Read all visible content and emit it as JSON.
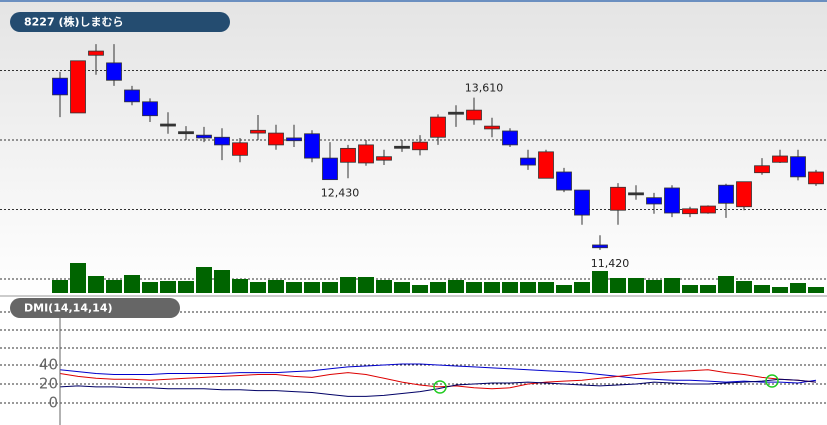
{
  "chart_data": [
    {
      "type": "candlestick",
      "title": "8227 (株)しまむら",
      "open": [
        13890,
        13390,
        14220,
        14110,
        13720,
        13550,
        13230,
        13120,
        13070,
        13040,
        12780,
        13100,
        12930,
        13030,
        13090,
        12740,
        12680,
        12670,
        12710,
        12910,
        12860,
        13040,
        13400,
        13290,
        13160,
        13130,
        12740,
        12450,
        12540,
        12280,
        11490,
        11990,
        12240,
        12170,
        12310,
        11940,
        11950,
        12350,
        12040,
        12530,
        12680,
        12760,
        12370
      ],
      "high": [
        13980,
        14140,
        14380,
        14380,
        13780,
        13600,
        13400,
        13200,
        13190,
        13170,
        13030,
        13360,
        13220,
        13220,
        13140,
        12970,
        12930,
        13000,
        12860,
        13000,
        13070,
        13370,
        13500,
        13610,
        13320,
        13170,
        12860,
        12860,
        12600,
        12280,
        11630,
        12380,
        12350,
        12240,
        12350,
        12040,
        12060,
        12370,
        12400,
        12740,
        12860,
        12860,
        12570
      ],
      "low": [
        13330,
        13390,
        13940,
        13780,
        13500,
        13260,
        13090,
        13000,
        12970,
        12710,
        12680,
        13000,
        12860,
        12900,
        12680,
        12430,
        12450,
        12630,
        12640,
        12830,
        12780,
        12930,
        13190,
        13220,
        13040,
        12900,
        12570,
        12450,
        12250,
        11780,
        11420,
        11780,
        12140,
        11940,
        11890,
        11890,
        11940,
        11880,
        11990,
        12500,
        12670,
        12420,
        12340
      ],
      "close": [
        13650,
        14140,
        14280,
        13860,
        13550,
        13350,
        13230,
        13120,
        13030,
        12930,
        12960,
        13140,
        13100,
        12990,
        12740,
        12430,
        12880,
        12930,
        12760,
        12910,
        12970,
        13330,
        13400,
        13430,
        13200,
        12930,
        12640,
        12830,
        12280,
        11920,
        11450,
        12320,
        12240,
        12080,
        11950,
        12010,
        12050,
        12090,
        12400,
        12630,
        12770,
        12470,
        12540
      ],
      "volume": [
        13,
        30,
        17,
        13,
        18,
        11,
        12,
        12,
        26,
        23,
        14,
        11,
        13,
        11,
        11,
        11,
        16,
        16,
        13,
        11,
        8,
        11,
        13,
        11,
        11,
        11,
        11,
        11,
        8,
        11,
        22,
        15,
        15,
        13,
        15,
        8,
        8,
        17,
        12,
        8,
        6,
        10,
        6
      ],
      "up_color": "#ff0000",
      "down_color": "#0000ff",
      "doji_color": "#333333",
      "volume_color": "#006400",
      "ylim": [
        10770,
        15015
      ],
      "gridlines": [
        11000,
        12000,
        13000,
        14000
      ],
      "volume_lim": [
        0,
        100
      ],
      "annotations": [
        {
          "label": "13,610",
          "value": 13610
        },
        {
          "label": "12,430",
          "value": 12430
        },
        {
          "label": "11,420",
          "value": 11420
        }
      ]
    },
    {
      "type": "line",
      "title": "DMI(14,14,14)",
      "series": [
        {
          "color": "#0000cc",
          "values": [
            35,
            33,
            31,
            30,
            30,
            30,
            31,
            31,
            31,
            31,
            32,
            32,
            32,
            33,
            34,
            36,
            38,
            39,
            40,
            41,
            41,
            40,
            39,
            38,
            37,
            36,
            35,
            34,
            33,
            32,
            30,
            28,
            26,
            25,
            24,
            24,
            23,
            22,
            23,
            22,
            22,
            21,
            24
          ]
        },
        {
          "color": "#dd0000",
          "values": [
            31,
            28,
            26,
            25,
            25,
            24,
            25,
            26,
            27,
            28,
            29,
            30,
            30,
            28,
            27,
            30,
            32,
            30,
            26,
            22,
            19,
            17,
            18,
            16,
            15,
            16,
            20,
            22,
            23,
            24,
            26,
            28,
            30,
            32,
            33,
            34,
            35,
            32,
            30,
            27,
            25,
            24,
            22
          ]
        },
        {
          "color": "#000066",
          "values": [
            17,
            18,
            17,
            17,
            16,
            16,
            15,
            15,
            15,
            14,
            14,
            13,
            13,
            12,
            11,
            9,
            7,
            7,
            8,
            10,
            12,
            15,
            19,
            20,
            21,
            21,
            22,
            21,
            20,
            19,
            18,
            19,
            20,
            22,
            21,
            20,
            20,
            21,
            22,
            23,
            25,
            24,
            22
          ]
        }
      ],
      "ylim": [
        0,
        100
      ],
      "yticks": [
        0,
        20,
        40
      ]
    }
  ]
}
